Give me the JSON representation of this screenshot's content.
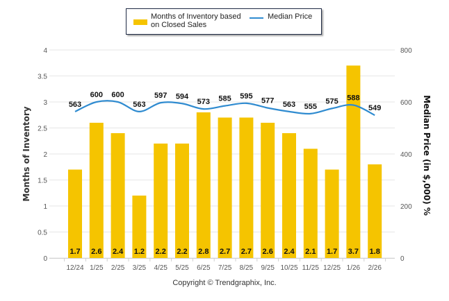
{
  "chart_data": {
    "type": "bar",
    "title": "",
    "categories": [
      "12/24",
      "1/25",
      "2/25",
      "3/25",
      "4/25",
      "5/25",
      "6/25",
      "7/25",
      "8/25",
      "9/25",
      "10/25",
      "11/25",
      "12/25",
      "1/26",
      "2/26"
    ],
    "series": [
      {
        "name": "Months of Inventory based on Closed Sales",
        "type": "bar",
        "axis": "left",
        "color": "#f5c400",
        "values": [
          1.7,
          2.6,
          2.4,
          1.2,
          2.2,
          2.2,
          2.8,
          2.7,
          2.7,
          2.6,
          2.4,
          2.1,
          1.7,
          3.7,
          1.8
        ],
        "labels": [
          "1.7",
          "2.6",
          "2.4",
          "1.2",
          "2.2",
          "2.2",
          "2.8",
          "2.7",
          "2.7",
          "2.6",
          "2.4",
          "2.1",
          "1.7",
          "3.7",
          "1.8"
        ]
      },
      {
        "name": "Median Price",
        "type": "line",
        "axis": "right",
        "color": "#2f8bd0",
        "values": [
          563,
          600,
          600,
          563,
          597,
          594,
          573,
          585,
          595,
          577,
          563,
          555,
          575,
          588,
          549
        ],
        "labels": [
          "563",
          "600",
          "600",
          "563",
          "597",
          "594",
          "573",
          "585",
          "595",
          "577",
          "563",
          "555",
          "575",
          "588",
          "549"
        ]
      }
    ],
    "ylabel": "Months of Inventory",
    "ylabel_right": "Median Price (in $,000) %",
    "xlabel": "",
    "ylim": [
      0,
      4
    ],
    "ylim_right": [
      0,
      800
    ],
    "yticks": [
      "0",
      "0.5",
      "1",
      "1.5",
      "2",
      "2.5",
      "3",
      "3.5",
      "4"
    ],
    "yticks_right": [
      "0",
      "200",
      "400",
      "600",
      "800"
    ],
    "grid": true,
    "legend_position": "top-center"
  },
  "legend": {
    "bar_label_line1": "Months of Inventory based",
    "bar_label_line2": "on Closed Sales",
    "line_label": "Median Price"
  },
  "footer": {
    "copyright": "Copyright © Trendgraphix, Inc."
  }
}
